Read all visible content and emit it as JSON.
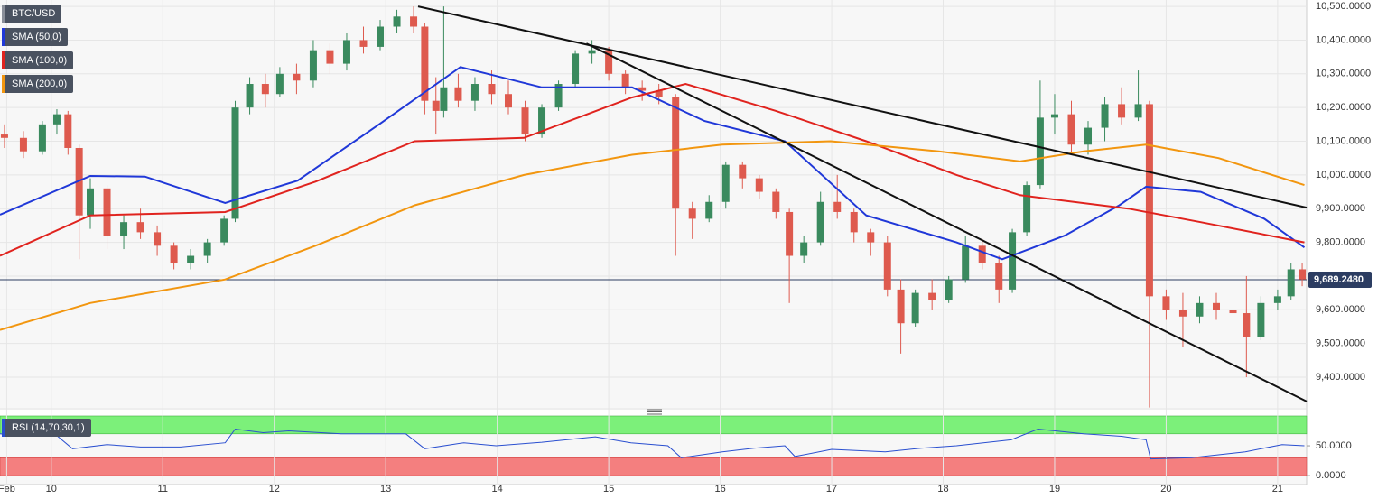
{
  "chart_data": {
    "type": "candlestick",
    "title": "BTC/USD",
    "xlim": [
      9.54,
      21.26
    ],
    "ylim": [
      9309,
      10519
    ],
    "xticks": [
      {
        "value": 9.6,
        "label": "Feb"
      },
      10,
      11,
      12,
      13,
      14,
      15,
      16,
      17,
      18,
      19,
      20,
      21
    ],
    "yticks": [
      {
        "value": 10500,
        "label": "10,500.0000"
      },
      {
        "value": 10400,
        "label": "10,400.0000"
      },
      {
        "value": 10300,
        "label": "10,300.0000"
      },
      {
        "value": 10200,
        "label": "10,200.0000"
      },
      {
        "value": 10100,
        "label": "10,100.0000"
      },
      {
        "value": 10000,
        "label": "10,000.0000"
      },
      {
        "value": 9900,
        "label": "9,900.0000"
      },
      {
        "value": 9800,
        "label": "9,800.0000"
      },
      {
        "value": 9700,
        "label": "9,700.0000"
      },
      {
        "value": 9600,
        "label": "9,600.0000"
      },
      {
        "value": 9500,
        "label": "9,500.0000"
      },
      {
        "value": 9400,
        "label": "9,400.0000"
      }
    ],
    "grid": true,
    "up_color": "#3a8a5e",
    "down_color": "#de5a4e",
    "legend_color": "#8a8f99",
    "x": [
      9.58,
      9.75,
      9.92,
      10.05,
      10.15,
      10.25,
      10.35,
      10.5,
      10.65,
      10.8,
      10.95,
      11.1,
      11.25,
      11.4,
      11.55,
      11.65,
      11.78,
      11.92,
      12.05,
      12.2,
      12.35,
      12.5,
      12.65,
      12.8,
      12.95,
      13.1,
      13.25,
      13.35,
      13.45,
      13.52,
      13.65,
      13.8,
      13.95,
      14.1,
      14.25,
      14.4,
      14.55,
      14.7,
      14.85,
      15.0,
      15.15,
      15.3,
      15.45,
      15.6,
      15.75,
      15.9,
      16.05,
      16.2,
      16.35,
      16.5,
      16.62,
      16.75,
      16.9,
      17.05,
      17.2,
      17.35,
      17.5,
      17.62,
      17.75,
      17.9,
      18.05,
      18.2,
      18.35,
      18.5,
      18.62,
      18.75,
      18.87,
      19.0,
      19.15,
      19.3,
      19.45,
      19.6,
      19.75,
      19.85,
      20.0,
      20.15,
      20.3,
      20.45,
      20.6,
      20.72,
      20.85,
      21.0,
      21.12,
      21.22
    ],
    "open": [
      10120,
      10110,
      10070,
      10150,
      10180,
      10080,
      9880,
      9960,
      9820,
      9860,
      9830,
      9790,
      9740,
      9760,
      9800,
      9870,
      10200,
      10270,
      10240,
      10300,
      10280,
      10370,
      10330,
      10400,
      10380,
      10440,
      10470,
      10440,
      10220,
      10190,
      10260,
      10220,
      10270,
      10240,
      10200,
      10120,
      10200,
      10270,
      10360,
      10370,
      10300,
      10260,
      10250,
      10230,
      9900,
      9870,
      9920,
      10030,
      9990,
      9950,
      9890,
      9760,
      9800,
      9920,
      9890,
      9830,
      9800,
      9660,
      9560,
      9650,
      9630,
      9690,
      9790,
      9740,
      9660,
      9830,
      9970,
      10170,
      10180,
      10090,
      10140,
      10210,
      10170,
      10210,
      9640,
      9600,
      9580,
      9620,
      9600,
      9590,
      9520,
      9620,
      9640,
      9720
    ],
    "high": [
      10150,
      10130,
      10160,
      10195,
      10190,
      10090,
      9990,
      9970,
      9880,
      9900,
      9850,
      9800,
      9780,
      9810,
      9880,
      10220,
      10290,
      10300,
      10320,
      10330,
      10400,
      10390,
      10420,
      10440,
      10460,
      10490,
      10500,
      10450,
      10290,
      10500,
      10300,
      10290,
      10310,
      10280,
      10220,
      10210,
      10280,
      10370,
      10400,
      10380,
      10310,
      10280,
      10270,
      10240,
      9920,
      9940,
      10040,
      10040,
      10000,
      9960,
      9900,
      9820,
      9950,
      10000,
      9900,
      9840,
      9820,
      9690,
      9660,
      9690,
      9700,
      9820,
      9810,
      9760,
      9840,
      9980,
      10280,
      10240,
      10220,
      10160,
      10230,
      10260,
      10310,
      10220,
      9660,
      9650,
      9640,
      9650,
      9690,
      9700,
      9640,
      9660,
      9740,
      9740
    ],
    "low": [
      10080,
      10050,
      10060,
      10120,
      10060,
      9750,
      9840,
      9780,
      9780,
      9810,
      9760,
      9720,
      9720,
      9740,
      9790,
      9860,
      10180,
      10200,
      10230,
      10240,
      10260,
      10300,
      10310,
      10360,
      10370,
      10420,
      10420,
      10180,
      10120,
      10170,
      10200,
      10190,
      10210,
      10180,
      10100,
      10110,
      10190,
      10260,
      10330,
      10280,
      10240,
      10220,
      10210,
      9760,
      9810,
      9860,
      9900,
      9960,
      9930,
      9870,
      9620,
      9740,
      9790,
      9870,
      9800,
      9760,
      9640,
      9470,
      9550,
      9600,
      9620,
      9680,
      9720,
      9620,
      9650,
      9820,
      9960,
      10120,
      10060,
      10060,
      10100,
      10150,
      10160,
      9310,
      9570,
      9490,
      9560,
      9570,
      9580,
      9400,
      9510,
      9600,
      9630,
      9670
    ],
    "close": [
      10110,
      10070,
      10150,
      10180,
      10080,
      9880,
      9960,
      9820,
      9860,
      9830,
      9790,
      9740,
      9760,
      9800,
      9870,
      10200,
      10270,
      10240,
      10300,
      10280,
      10370,
      10330,
      10400,
      10380,
      10440,
      10470,
      10440,
      10220,
      10190,
      10260,
      10220,
      10270,
      10240,
      10200,
      10120,
      10200,
      10270,
      10360,
      10370,
      10300,
      10260,
      10250,
      10230,
      9900,
      9870,
      9920,
      10030,
      9990,
      9950,
      9890,
      9760,
      9800,
      9920,
      9890,
      9830,
      9800,
      9660,
      9560,
      9650,
      9630,
      9690,
      9790,
      9740,
      9660,
      9830,
      9970,
      10170,
      10180,
      10090,
      10140,
      10210,
      10170,
      10210,
      9640,
      9600,
      9580,
      9620,
      9600,
      9590,
      9520,
      9620,
      9640,
      9720,
      9690
    ],
    "last": 9689.248,
    "last_label": "9,689.2480",
    "last_color": "#2c3d62",
    "series": [
      {
        "name": "SMA (50,0)",
        "color": "#2038d8",
        "x": [
          9.54,
          10.35,
          10.84,
          11.56,
          12.21,
          12.94,
          13.67,
          14.4,
          15.21,
          15.86,
          16.58,
          17.31,
          18.12,
          18.53,
          19.09,
          19.58,
          19.82,
          20.31,
          20.88,
          21.24
        ],
        "values": [
          9882,
          9997,
          9995,
          9917,
          9983,
          10150,
          10320,
          10260,
          10260,
          10160,
          10100,
          9880,
          9800,
          9750,
          9820,
          9910,
          9965,
          9950,
          9870,
          9785
        ]
      },
      {
        "name": "SMA (100,0)",
        "color": "#e0231e",
        "x": [
          9.54,
          10.35,
          11.56,
          12.37,
          13.26,
          14.24,
          15.21,
          15.69,
          16.5,
          17.31,
          18.12,
          18.69,
          19.66,
          20.31,
          21.24
        ],
        "values": [
          9760,
          9880,
          9890,
          9980,
          10100,
          10110,
          10230,
          10270,
          10190,
          10100,
          10000,
          9940,
          9900,
          9860,
          9800
        ]
      },
      {
        "name": "SMA (200,0)",
        "color": "#f2960f",
        "x": [
          9.54,
          10.35,
          11.56,
          12.37,
          13.26,
          14.24,
          15.21,
          16.02,
          16.99,
          17.96,
          18.69,
          19.26,
          19.82,
          20.47,
          21.24
        ],
        "values": [
          9540,
          9620,
          9690,
          9790,
          9910,
          10000,
          10060,
          10090,
          10100,
          10070,
          10040,
          10070,
          10090,
          10050,
          9970
        ]
      }
    ],
    "trendlines": [
      {
        "x": [
          13.29,
          21.26
        ],
        "y": [
          10500,
          9903
        ]
      },
      {
        "x": [
          14.8,
          21.26
        ],
        "y": [
          10390,
          9328
        ]
      }
    ],
    "rsi": {
      "name": "RSI (14,70,30,1)",
      "color": "#2a4fd0",
      "ylim": [
        -15,
        100
      ],
      "overbought": 70,
      "oversold": 30,
      "yticks": [
        {
          "value": 50,
          "label": "50.0000"
        },
        {
          "value": 0,
          "label": "0.0000"
        }
      ],
      "x": [
        9.54,
        9.8,
        10.03,
        10.19,
        10.5,
        10.8,
        11.16,
        11.56,
        11.65,
        11.9,
        12.13,
        12.6,
        13.18,
        13.35,
        13.7,
        13.99,
        14.4,
        14.88,
        15.2,
        15.53,
        15.65,
        16.02,
        16.3,
        16.58,
        16.67,
        17.0,
        17.48,
        17.8,
        18.12,
        18.61,
        18.85,
        19.26,
        19.6,
        19.82,
        19.86,
        20.23,
        20.71,
        21.04,
        21.24
      ],
      "values": [
        70,
        66,
        70,
        45,
        52,
        48,
        48,
        55,
        78,
        72,
        75,
        70,
        70,
        45,
        55,
        50,
        56,
        65,
        55,
        50,
        30,
        40,
        46,
        50,
        32,
        44,
        40,
        46,
        50,
        60,
        78,
        70,
        66,
        60,
        28,
        30,
        40,
        52,
        50
      ]
    }
  }
}
